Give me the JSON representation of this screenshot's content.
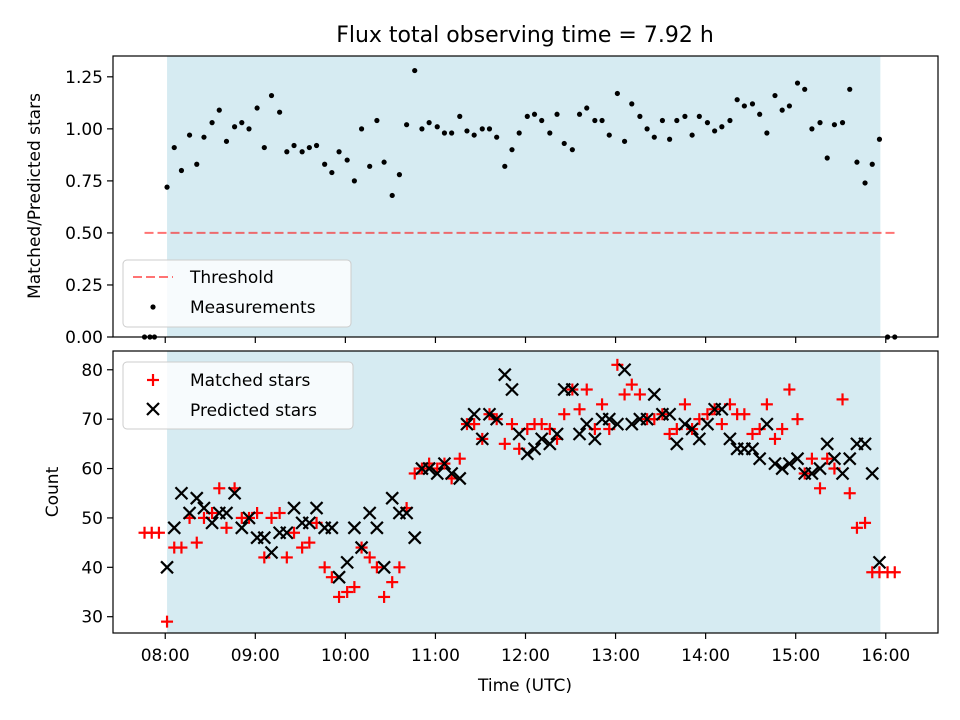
{
  "title": "Flux total observing time = 7.92 h",
  "colors": {
    "observing_span": "#add8e6",
    "threshold": "#ff0000",
    "measurements": "#000000",
    "matched": "#ff0000",
    "predicted": "#000000"
  },
  "chart_data": [
    {
      "type": "scatter",
      "ylabel": "Matched/Predicted stars",
      "xlabel": "",
      "ylim": [
        0,
        1.35
      ],
      "yticks": [
        0,
        0.25,
        0.5,
        0.75,
        1.0,
        1.25
      ],
      "ytick_labels": [
        "0.00",
        "0.25",
        "0.50",
        "0.75",
        "1.00",
        "1.25"
      ],
      "xlim_hours": [
        7.42,
        16.58
      ],
      "shaded_span_hours": [
        8.02,
        15.94
      ],
      "threshold": {
        "value": 0.5,
        "x_start_hours": 7.77,
        "x_end_hours": 16.12,
        "style": "dashed"
      },
      "legend_position": "lower-left",
      "legend": [
        "Threshold",
        "Measurements"
      ],
      "series": [
        {
          "name": "Measurements",
          "x": [
            7.77,
            7.83,
            7.88,
            8.02,
            8.1,
            8.18,
            8.27,
            8.35,
            8.43,
            8.52,
            8.6,
            8.68,
            8.77,
            8.85,
            8.93,
            9.02,
            9.1,
            9.18,
            9.27,
            9.35,
            9.43,
            9.52,
            9.6,
            9.68,
            9.77,
            9.85,
            9.93,
            10.02,
            10.1,
            10.18,
            10.27,
            10.35,
            10.43,
            10.52,
            10.6,
            10.68,
            10.77,
            10.85,
            10.93,
            11.02,
            11.1,
            11.18,
            11.27,
            11.35,
            11.43,
            11.52,
            11.6,
            11.68,
            11.77,
            11.85,
            11.93,
            12.02,
            12.1,
            12.18,
            12.27,
            12.35,
            12.43,
            12.52,
            12.6,
            12.68,
            12.77,
            12.85,
            12.93,
            13.02,
            13.1,
            13.18,
            13.27,
            13.35,
            13.43,
            13.52,
            13.6,
            13.68,
            13.77,
            13.85,
            13.93,
            14.02,
            14.1,
            14.18,
            14.27,
            14.35,
            14.43,
            14.52,
            14.6,
            14.68,
            14.77,
            14.85,
            14.93,
            15.02,
            15.1,
            15.18,
            15.27,
            15.35,
            15.43,
            15.52,
            15.6,
            15.68,
            15.77,
            15.85,
            15.93,
            16.02,
            16.1
          ],
          "y": [
            0,
            0,
            0,
            0.72,
            0.91,
            0.8,
            0.97,
            0.83,
            0.96,
            1.03,
            1.09,
            0.94,
            1.01,
            1.03,
            1.0,
            1.1,
            0.91,
            1.16,
            1.08,
            0.89,
            0.92,
            0.89,
            0.91,
            0.92,
            0.83,
            0.79,
            0.89,
            0.85,
            0.75,
            1.0,
            0.82,
            1.04,
            0.84,
            0.68,
            0.78,
            1.02,
            1.28,
            1.0,
            1.03,
            1.01,
            0.98,
            0.98,
            1.06,
            0.99,
            0.97,
            1.0,
            1.0,
            0.96,
            0.82,
            0.9,
            0.98,
            1.06,
            1.07,
            1.04,
            0.98,
            1.07,
            0.93,
            0.9,
            1.07,
            1.1,
            1.04,
            1.04,
            0.97,
            1.17,
            0.94,
            1.12,
            1.06,
            1.0,
            0.96,
            1.04,
            0.95,
            1.04,
            1.06,
            0.97,
            1.06,
            1.03,
            0.99,
            1.01,
            1.04,
            1.14,
            1.11,
            1.12,
            1.07,
            0.98,
            1.16,
            1.09,
            1.11,
            1.22,
            1.19,
            1.0,
            1.03,
            0.86,
            1.02,
            1.03,
            1.19,
            0.84,
            0.74,
            0.83,
            0.95,
            0,
            0
          ]
        }
      ]
    },
    {
      "type": "scatter",
      "ylabel": "Count",
      "xlabel": "Time (UTC)",
      "ylim": [
        26.7,
        83.8
      ],
      "yticks": [
        30,
        40,
        50,
        60,
        70,
        80
      ],
      "ytick_labels": [
        "30",
        "40",
        "50",
        "60",
        "70",
        "80"
      ],
      "xlim_hours": [
        7.42,
        16.58
      ],
      "xticks_hours": [
        8,
        9,
        10,
        11,
        12,
        13,
        14,
        15,
        16
      ],
      "xtick_labels": [
        "08:00",
        "09:00",
        "10:00",
        "11:00",
        "12:00",
        "13:00",
        "14:00",
        "15:00",
        "16:00"
      ],
      "shaded_span_hours": [
        8.02,
        15.94
      ],
      "legend_position": "top-left",
      "legend": [
        "Matched stars",
        "Predicted stars"
      ],
      "series": [
        {
          "name": "Matched stars",
          "marker": "plus",
          "x": [
            7.77,
            7.85,
            7.93,
            8.02,
            8.1,
            8.18,
            8.27,
            8.35,
            8.43,
            8.52,
            8.6,
            8.68,
            8.77,
            8.85,
            8.93,
            9.02,
            9.1,
            9.18,
            9.27,
            9.35,
            9.43,
            9.52,
            9.6,
            9.68,
            9.77,
            9.85,
            9.93,
            10.02,
            10.1,
            10.18,
            10.27,
            10.35,
            10.43,
            10.52,
            10.6,
            10.68,
            10.77,
            10.85,
            10.93,
            11.02,
            11.1,
            11.18,
            11.27,
            11.35,
            11.43,
            11.52,
            11.6,
            11.68,
            11.77,
            11.85,
            11.93,
            12.02,
            12.1,
            12.18,
            12.27,
            12.35,
            12.43,
            12.52,
            12.6,
            12.68,
            12.77,
            12.85,
            12.93,
            13.02,
            13.1,
            13.18,
            13.27,
            13.35,
            13.43,
            13.52,
            13.6,
            13.68,
            13.77,
            13.85,
            13.93,
            14.02,
            14.1,
            14.18,
            14.27,
            14.35,
            14.43,
            14.52,
            14.6,
            14.68,
            14.77,
            14.85,
            14.93,
            15.02,
            15.1,
            15.18,
            15.27,
            15.35,
            15.43,
            15.52,
            15.6,
            15.68,
            15.77,
            15.85,
            15.93,
            16.02,
            16.1
          ],
          "y": [
            47,
            47,
            47,
            29,
            44,
            44,
            50,
            45,
            50,
            51,
            56,
            48,
            56,
            50,
            50,
            51,
            42,
            50,
            51,
            42,
            47,
            44,
            45,
            49,
            40,
            38,
            34,
            35,
            36,
            44,
            42,
            40,
            34,
            37,
            40,
            52,
            59,
            60,
            61,
            60,
            61,
            58,
            62,
            69,
            69,
            66,
            71,
            70,
            65,
            69,
            64,
            68,
            69,
            69,
            68,
            66,
            71,
            76,
            72,
            76,
            68,
            73,
            68,
            81,
            75,
            77,
            75,
            70,
            70,
            71,
            67,
            68,
            73,
            68,
            70,
            71,
            72,
            69,
            73,
            71,
            71,
            67,
            68,
            73,
            66,
            68,
            76,
            70,
            59,
            62,
            56,
            62,
            60,
            74,
            55,
            48,
            49,
            39,
            39,
            39,
            39
          ]
        },
        {
          "name": "Predicted stars",
          "marker": "x",
          "x": [
            8.02,
            8.1,
            8.18,
            8.27,
            8.35,
            8.43,
            8.52,
            8.6,
            8.68,
            8.77,
            8.85,
            8.93,
            9.02,
            9.1,
            9.18,
            9.27,
            9.35,
            9.43,
            9.52,
            9.6,
            9.68,
            9.77,
            9.85,
            9.93,
            10.02,
            10.1,
            10.18,
            10.27,
            10.35,
            10.43,
            10.52,
            10.6,
            10.68,
            10.77,
            10.85,
            10.93,
            11.02,
            11.1,
            11.18,
            11.27,
            11.35,
            11.43,
            11.52,
            11.6,
            11.68,
            11.77,
            11.85,
            11.93,
            12.02,
            12.1,
            12.18,
            12.27,
            12.35,
            12.43,
            12.52,
            12.6,
            12.68,
            12.77,
            12.85,
            12.93,
            13.02,
            13.1,
            13.18,
            13.27,
            13.35,
            13.43,
            13.52,
            13.6,
            13.68,
            13.77,
            13.85,
            13.93,
            14.02,
            14.1,
            14.18,
            14.27,
            14.35,
            14.43,
            14.52,
            14.6,
            14.68,
            14.77,
            14.85,
            14.93,
            15.02,
            15.1,
            15.18,
            15.27,
            15.35,
            15.43,
            15.52,
            15.6,
            15.68,
            15.77,
            15.85,
            15.93
          ],
          "y": [
            40,
            48,
            55,
            51,
            54,
            52,
            49,
            51,
            51,
            55,
            48,
            50,
            46,
            46,
            43,
            47,
            47,
            52,
            49,
            49,
            52,
            48,
            48,
            38,
            41,
            48,
            44,
            51,
            48,
            40,
            54,
            51,
            51,
            46,
            60,
            60,
            59,
            61,
            59,
            58,
            69,
            71,
            66,
            71,
            70,
            79,
            76,
            67,
            63,
            64,
            66,
            65,
            67,
            76,
            76,
            67,
            69,
            66,
            70,
            70,
            69,
            80,
            69,
            70,
            70,
            75,
            71,
            71,
            65,
            69,
            68,
            66,
            69,
            72,
            72,
            66,
            64,
            64,
            64,
            62,
            69,
            61,
            60,
            61,
            62,
            59,
            59,
            60,
            65,
            62,
            59,
            62,
            65,
            65,
            59,
            41
          ]
        }
      ]
    }
  ]
}
